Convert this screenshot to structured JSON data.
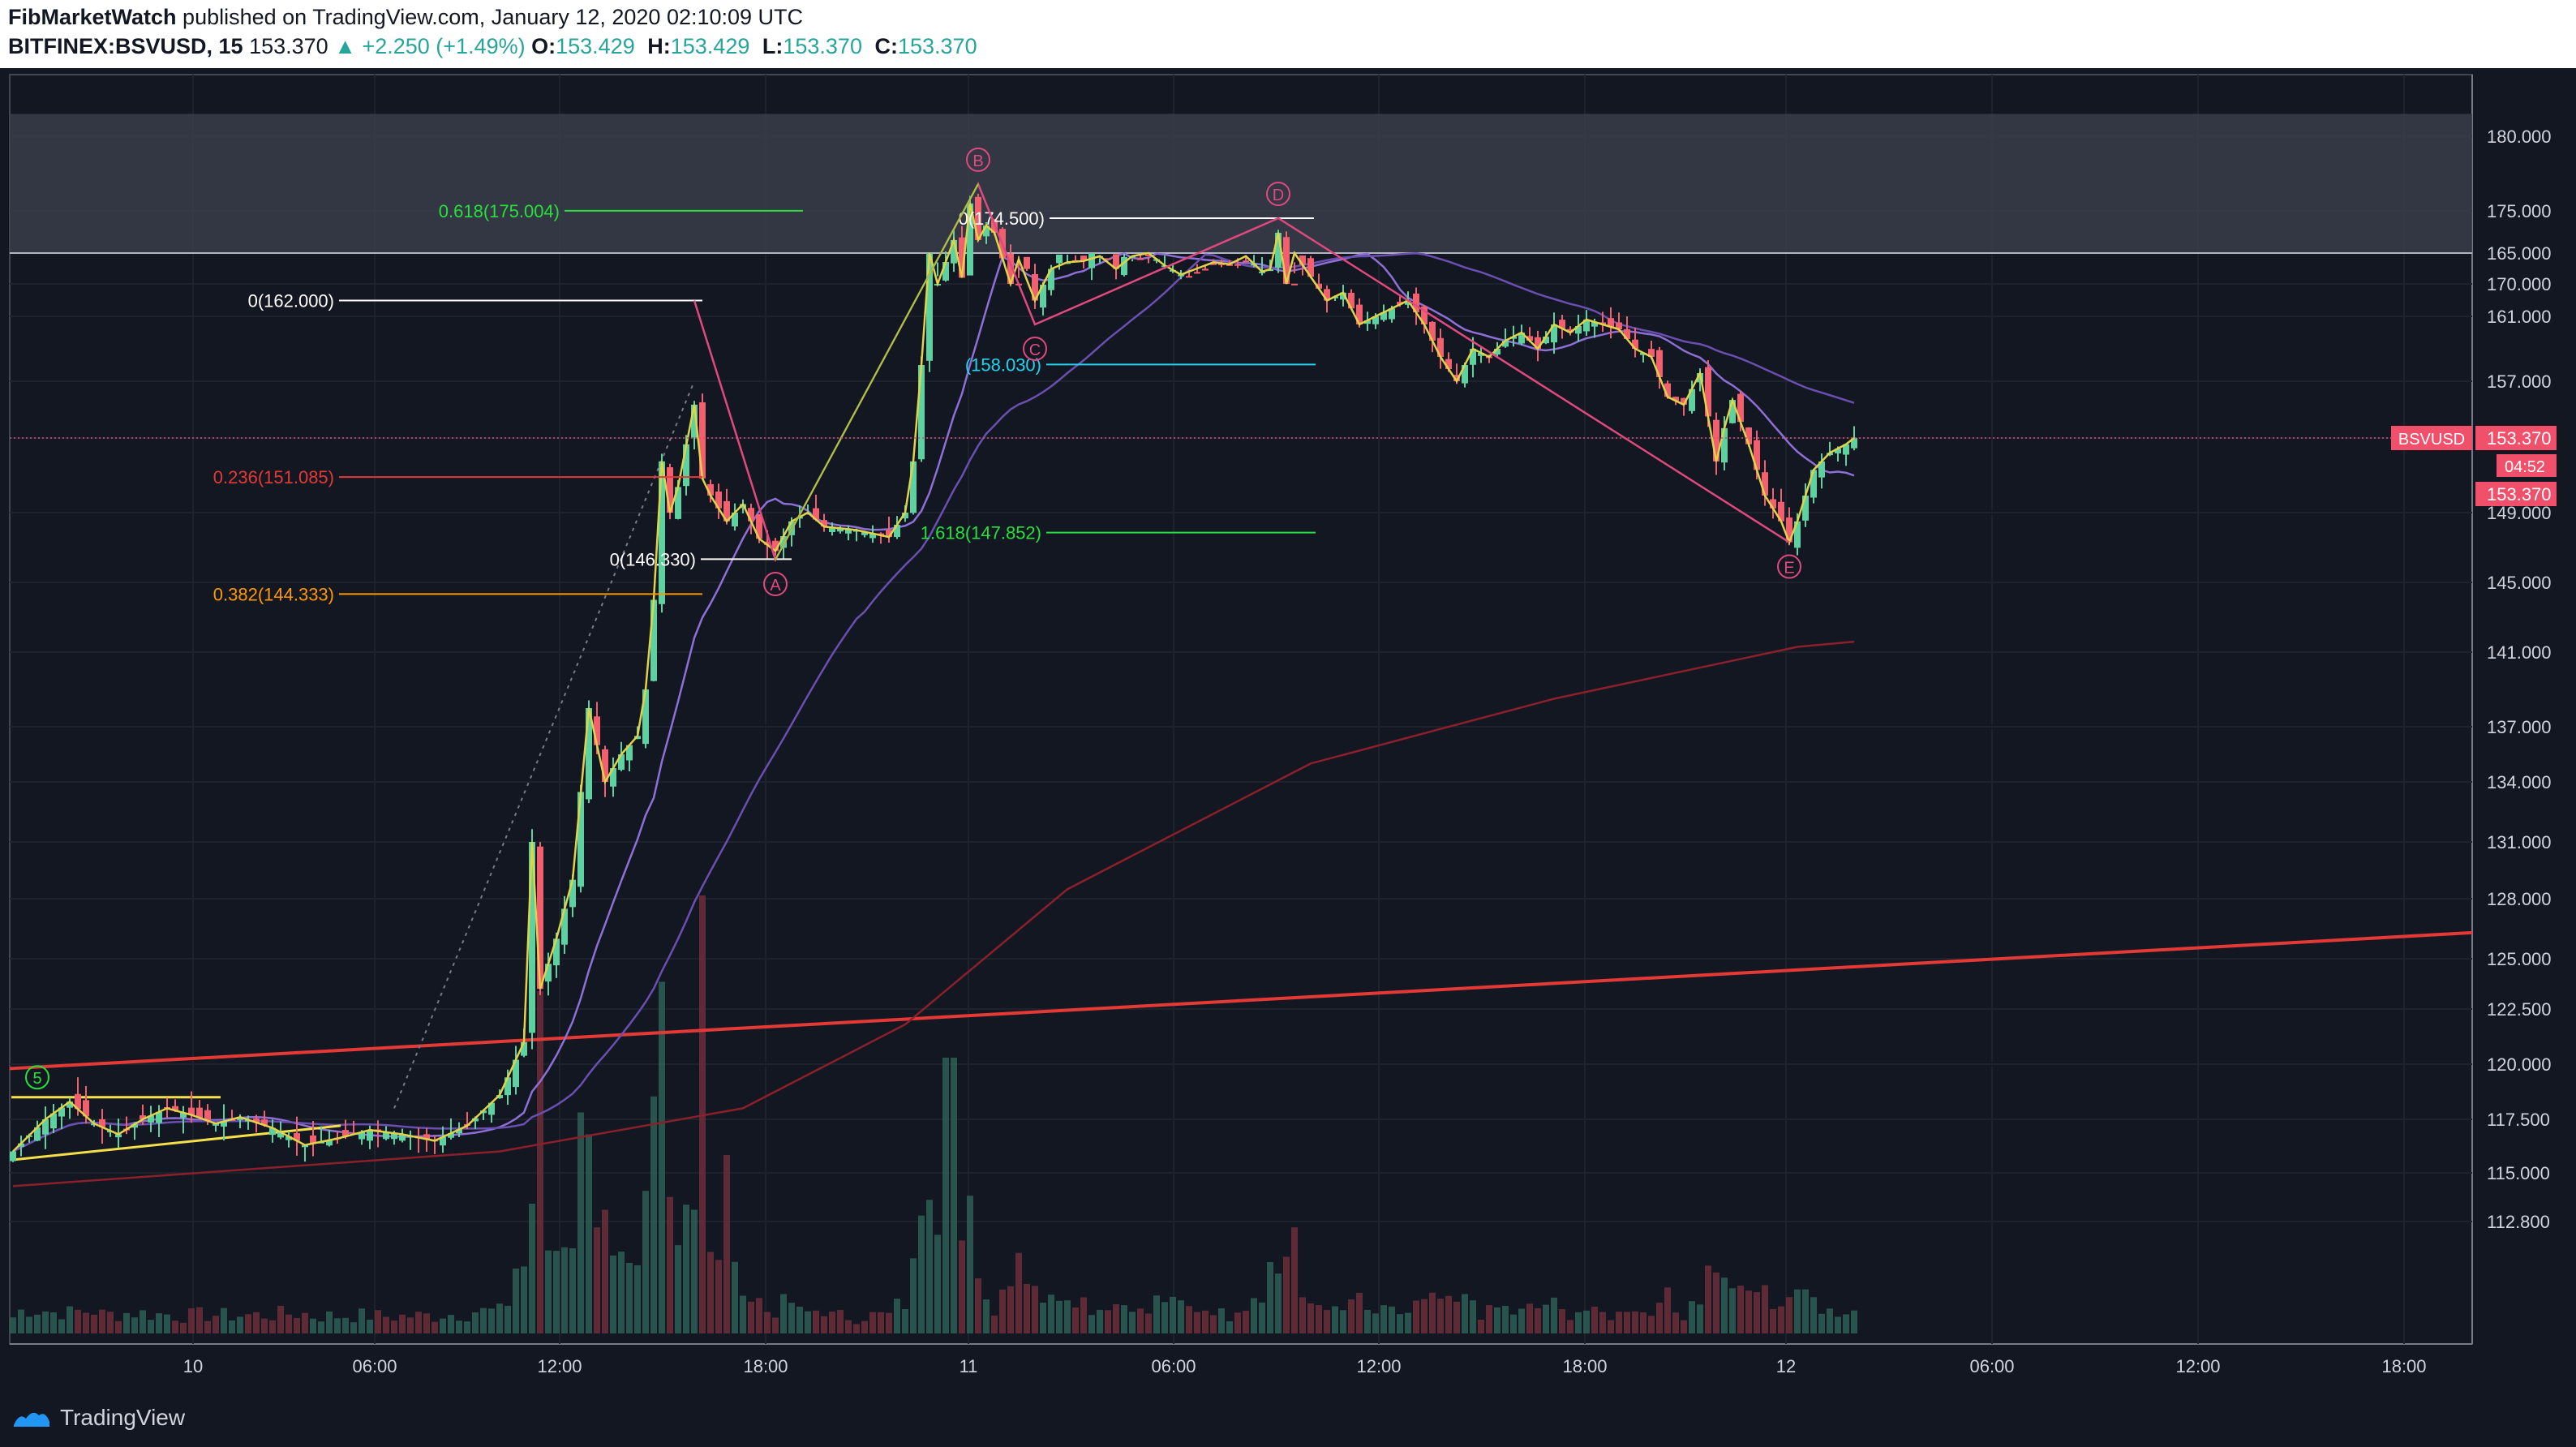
{
  "header": {
    "author": "FibMarketWatch",
    "published_text": "published on TradingView.com, January 12, 2020 02:10:09 UTC",
    "symbol": "BITFINEX:BSVUSD, 15",
    "last": "153.370",
    "change": "+2.250 (+1.49%)",
    "o_label": "O:",
    "o": "153.429",
    "h_label": "H:",
    "h": "153.429",
    "l_label": "L:",
    "l": "153.370",
    "c_label": "C:",
    "c": "153.370"
  },
  "footer": {
    "brand": "TradingView"
  },
  "colors": {
    "background": "#131722",
    "bull": "#5fd1a0",
    "bear": "#f0606e",
    "zigzag": "#e0d348",
    "harmonic": "#e0497f",
    "red_line": "#e53935",
    "ma_purple": "#6b4fb0",
    "zone": "#3a3d49"
  },
  "chart_data": {
    "type": "candlestick",
    "price_axis": {
      "ticks": [
        "180.000",
        "175.000",
        "170.000",
        "165.000",
        "161.000",
        "157.000",
        "153.370",
        "149.000",
        "145.000",
        "141.000",
        "137.000",
        "134.000",
        "131.000",
        "128.000",
        "125.000",
        "122.500",
        "120.000",
        "117.500",
        "115.000",
        "112.800"
      ],
      "last_price": "153.370",
      "symbol_label": "BSVUSD",
      "countdown": "04:52",
      "second_price_label": "153.370"
    },
    "time_axis": {
      "ticks": [
        "10",
        "06:00",
        "12:00",
        "18:00",
        "11",
        "06:00",
        "12:00",
        "18:00",
        "12",
        "06:00",
        "12:00",
        "18:00"
      ]
    },
    "fib_levels": [
      {
        "label": "0.618(175.004)",
        "price": 175.004,
        "color": "#26e03c"
      },
      {
        "label": "0(174.500)",
        "price": 174.5,
        "color": "#ffffff"
      },
      {
        "label": "0(162.000)",
        "price": 162.0,
        "color": "#ffffff"
      },
      {
        "label": "(158.030)",
        "price": 158.03,
        "color": "#22d3ee"
      },
      {
        "label": "0.236(151.085)",
        "price": 151.085,
        "color": "#e53935"
      },
      {
        "label": "1.618(147.852)",
        "price": 147.852,
        "color": "#26e03c"
      },
      {
        "label": "0(146.330)",
        "price": 146.33,
        "color": "#ffffff"
      },
      {
        "label": "0.382(144.333)",
        "price": 144.333,
        "color": "#ff9800"
      }
    ],
    "harmonic_points": [
      {
        "label": "A",
        "price": 146.3
      },
      {
        "label": "B",
        "price": 176.8
      },
      {
        "label": "C",
        "price": 160.5
      },
      {
        "label": "D",
        "price": 174.5
      },
      {
        "label": "E",
        "price": 147.3
      }
    ],
    "wave_label": "5",
    "resistance_zone": {
      "from": 165.0,
      "to": 181.5
    },
    "price_path": [
      [
        0,
        116.0
      ],
      [
        4,
        117.5
      ],
      [
        7,
        118.3
      ],
      [
        10,
        117.3
      ],
      [
        13,
        116.8
      ],
      [
        16,
        117.5
      ],
      [
        19,
        118.0
      ],
      [
        22,
        117.7
      ],
      [
        25,
        117.3
      ],
      [
        28,
        117.6
      ],
      [
        32,
        117.1
      ],
      [
        36,
        116.3
      ],
      [
        40,
        116.6
      ],
      [
        44,
        117.0
      ],
      [
        48,
        116.8
      ],
      [
        52,
        116.5
      ],
      [
        56,
        117.2
      ],
      [
        58,
        117.9
      ],
      [
        60,
        118.6
      ],
      [
        63,
        121.0
      ],
      [
        64,
        131.0
      ],
      [
        65,
        123.5
      ],
      [
        67,
        126.0
      ],
      [
        69,
        129.0
      ],
      [
        71,
        138.0
      ],
      [
        73,
        134.0
      ],
      [
        75,
        135.5
      ],
      [
        77,
        136.5
      ],
      [
        78,
        139.0
      ],
      [
        79,
        144.0
      ],
      [
        80,
        152.0
      ],
      [
        81,
        149.0
      ],
      [
        82,
        150.5
      ],
      [
        84,
        155.5
      ],
      [
        85,
        151.0
      ],
      [
        86,
        150.0
      ],
      [
        88,
        148.5
      ],
      [
        90,
        149.5
      ],
      [
        92,
        147.5
      ],
      [
        94,
        146.8
      ],
      [
        96,
        148.5
      ],
      [
        98,
        149.0
      ],
      [
        100,
        148.2
      ],
      [
        104,
        148.0
      ],
      [
        108,
        147.6
      ],
      [
        110,
        149.0
      ],
      [
        111,
        152.0
      ],
      [
        112,
        158.0
      ],
      [
        113,
        165.0
      ],
      [
        114,
        170.0
      ],
      [
        116,
        173.0
      ],
      [
        117,
        169.0
      ],
      [
        118,
        175.5
      ],
      [
        119,
        173.0
      ],
      [
        120,
        174.0
      ],
      [
        121,
        173.5
      ],
      [
        123,
        170.0
      ],
      [
        124,
        166.0
      ],
      [
        126,
        162.0
      ],
      [
        128,
        164.0
      ],
      [
        130,
        166.5
      ],
      [
        132,
        164.5
      ],
      [
        134,
        165.5
      ],
      [
        136,
        164.0
      ],
      [
        138,
        165.5
      ],
      [
        140,
        165.0
      ],
      [
        142,
        167.0
      ],
      [
        144,
        168.5
      ],
      [
        146,
        167.5
      ],
      [
        148,
        166.5
      ],
      [
        150,
        166.8
      ],
      [
        152,
        165.5
      ],
      [
        154,
        168.0
      ],
      [
        155,
        171.0
      ],
      [
        156,
        173.5
      ],
      [
        157,
        170.0
      ],
      [
        158,
        165.0
      ],
      [
        160,
        163.5
      ],
      [
        162,
        162.0
      ],
      [
        164,
        162.5
      ],
      [
        166,
        160.5
      ],
      [
        168,
        161.0
      ],
      [
        170,
        161.5
      ],
      [
        172,
        162.0
      ],
      [
        174,
        160.5
      ],
      [
        176,
        158.5
      ],
      [
        178,
        157.0
      ],
      [
        180,
        159.0
      ],
      [
        182,
        158.5
      ],
      [
        184,
        159.5
      ],
      [
        186,
        160.0
      ],
      [
        188,
        159.0
      ],
      [
        190,
        160.5
      ],
      [
        192,
        160.0
      ],
      [
        194,
        160.8
      ],
      [
        196,
        160.5
      ],
      [
        198,
        160.2
      ],
      [
        200,
        159.0
      ],
      [
        202,
        158.5
      ],
      [
        204,
        156.0
      ],
      [
        206,
        155.5
      ],
      [
        208,
        157.5
      ],
      [
        210,
        152.0
      ],
      [
        211,
        154.0
      ],
      [
        212,
        155.8
      ],
      [
        214,
        153.0
      ],
      [
        216,
        150.0
      ],
      [
        218,
        148.5
      ],
      [
        219,
        147.3
      ],
      [
        220,
        148.5
      ],
      [
        222,
        151.5
      ],
      [
        224,
        152.5
      ],
      [
        226,
        153.0
      ],
      [
        227,
        153.37
      ]
    ]
  }
}
